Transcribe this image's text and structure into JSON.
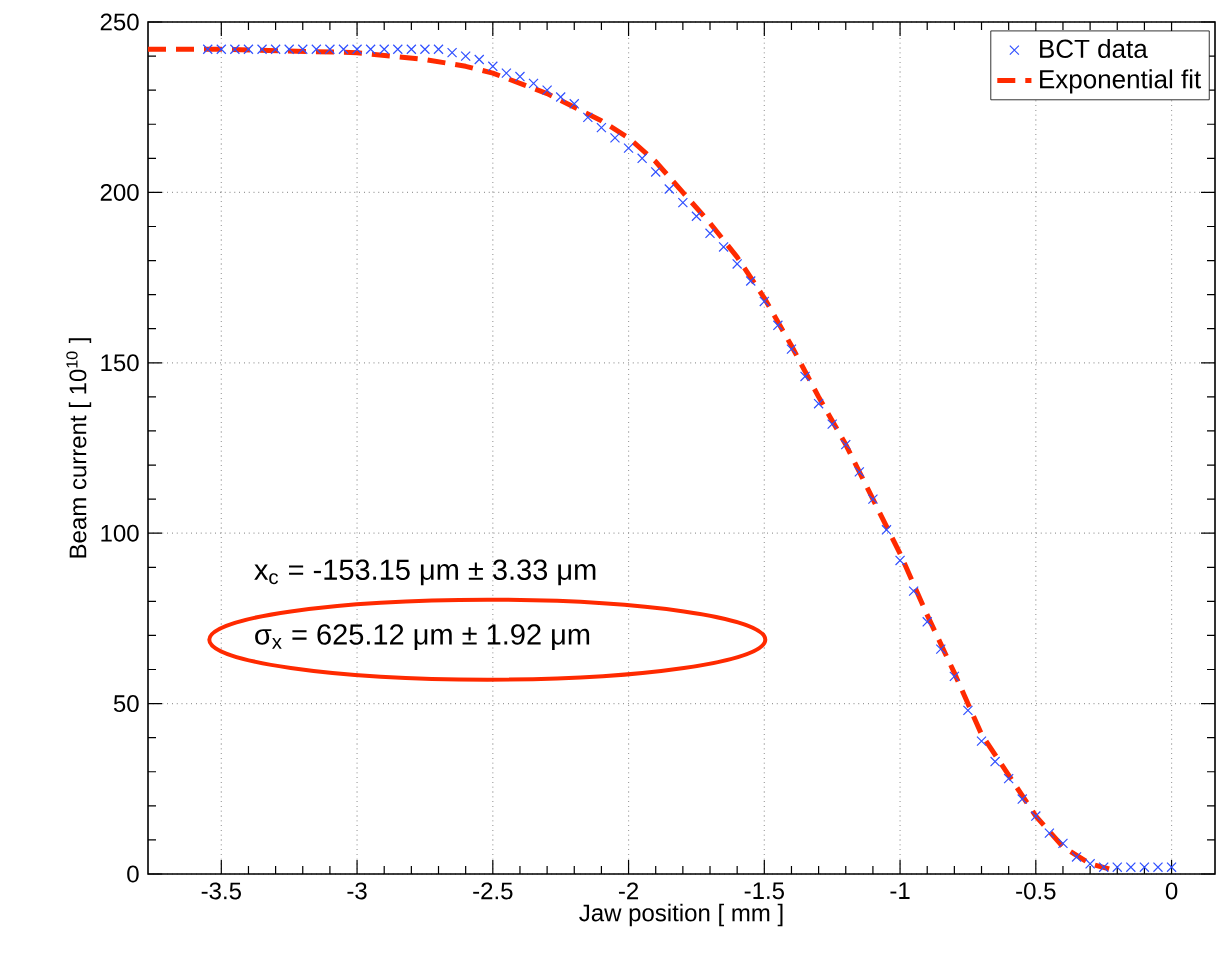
{
  "chart_data": {
    "type": "scatter",
    "xlabel": "Jaw position [ mm ]",
    "ylabel": "Beam current [ 10$^{10}$ ]",
    "xlim": [
      -3.77,
      0.16
    ],
    "ylim": [
      0,
      250
    ],
    "xticks": [
      -3.5,
      -3,
      -2.5,
      -2,
      -1.5,
      -1,
      -0.5,
      0
    ],
    "yticks": [
      0,
      50,
      100,
      150,
      200,
      250
    ],
    "grid": true,
    "legend": "top right",
    "series": [
      {
        "name": "BCT data",
        "marker": "cross",
        "color": "#3050ff",
        "x": [
          -3.55,
          -3.5,
          -3.45,
          -3.4,
          -3.35,
          -3.3,
          -3.25,
          -3.2,
          -3.15,
          -3.1,
          -3.05,
          -3.0,
          -2.95,
          -2.9,
          -2.85,
          -2.8,
          -2.75,
          -2.7,
          -2.65,
          -2.6,
          -2.55,
          -2.5,
          -2.45,
          -2.4,
          -2.35,
          -2.3,
          -2.25,
          -2.2,
          -2.15,
          -2.1,
          -2.05,
          -2.0,
          -1.95,
          -1.9,
          -1.85,
          -1.8,
          -1.75,
          -1.7,
          -1.65,
          -1.6,
          -1.55,
          -1.5,
          -1.45,
          -1.4,
          -1.35,
          -1.3,
          -1.25,
          -1.2,
          -1.15,
          -1.1,
          -1.05,
          -1.0,
          -0.95,
          -0.9,
          -0.85,
          -0.8,
          -0.75,
          -0.7,
          -0.65,
          -0.6,
          -0.55,
          -0.5,
          -0.45,
          -0.4,
          -0.35,
          -0.3,
          -0.25,
          -0.2,
          -0.15,
          -0.1,
          -0.05,
          0
        ],
        "values": [
          242,
          242,
          242,
          242,
          242,
          242,
          242,
          242,
          242,
          242,
          242,
          242,
          242,
          242,
          242,
          242,
          242,
          242,
          241,
          240,
          239,
          237,
          235,
          234,
          232,
          230,
          228,
          226,
          222,
          219,
          216,
          213,
          210,
          206,
          201,
          197,
          193,
          188,
          184,
          179,
          174,
          168,
          161,
          154,
          146,
          138,
          132,
          126,
          118,
          110,
          101,
          92,
          83,
          74,
          66,
          58,
          48,
          39,
          33,
          28,
          22,
          17,
          12,
          9,
          5,
          3,
          2,
          2,
          2,
          2,
          2,
          2
        ]
      },
      {
        "name": "Exponential fit",
        "type": "line",
        "line_style": "dashed",
        "color": "#ff2a00",
        "x": [
          -3.77,
          -3.5,
          -3.0,
          -2.75,
          -2.6,
          -2.5,
          -2.3,
          -2.1,
          -2.0,
          -1.9,
          -1.8,
          -1.7,
          -1.6,
          -1.5,
          -1.4,
          -1.3,
          -1.2,
          -1.1,
          -1.0,
          -0.9,
          -0.8,
          -0.7,
          -0.6,
          -0.5,
          -0.4,
          -0.3,
          -0.23
        ],
        "values": [
          242,
          242,
          241,
          239,
          237,
          235,
          229,
          221,
          216,
          209,
          200,
          191,
          181,
          169,
          155,
          140,
          126,
          110,
          94,
          76,
          59,
          41,
          29,
          17,
          8,
          3,
          1.5
        ]
      }
    ],
    "annotations": [
      "x$_{c}$ = -153.15 μm ± 3.33 μm",
      "σ$_{x}$ = 625.12 μm ± 1.92 μm"
    ]
  }
}
